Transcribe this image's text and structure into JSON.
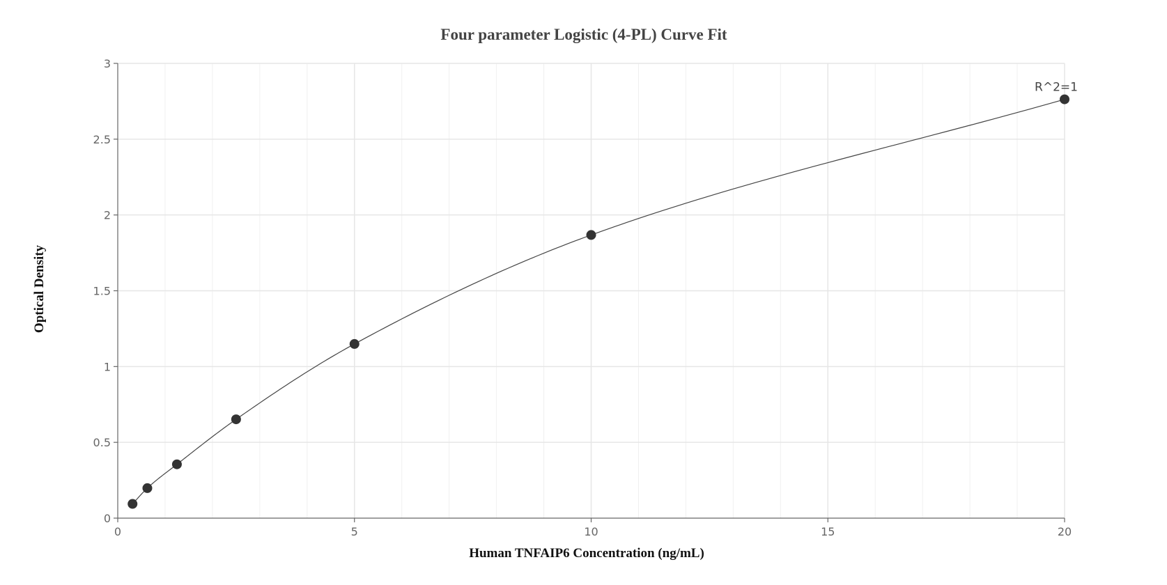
{
  "chart_data": {
    "type": "scatter",
    "title": "Four parameter Logistic (4-PL) Curve Fit",
    "xlabel": "Human TNFAIP6 Concentration (ng/mL)",
    "ylabel": "Optical Density",
    "xlim": [
      0,
      20
    ],
    "ylim": [
      0,
      3
    ],
    "x_ticks": [
      "0",
      "5",
      "10",
      "15",
      "20"
    ],
    "y_ticks": [
      "0",
      "0.5",
      "1",
      "1.5",
      "2",
      "2.5",
      "3"
    ],
    "grid": true,
    "series": [
      {
        "points": [
          {
            "x": 0.3125,
            "y": 0.094
          },
          {
            "x": 0.625,
            "y": 0.198
          },
          {
            "x": 1.25,
            "y": 0.355
          },
          {
            "x": 2.5,
            "y": 0.652
          },
          {
            "x": 5,
            "y": 1.149
          },
          {
            "x": 10,
            "y": 1.868
          },
          {
            "x": 20,
            "y": 2.763
          }
        ]
      }
    ],
    "fit_curve": "4-PL",
    "annotation": "R^2=1",
    "colors": {
      "point": "#333333",
      "curve": "#444444",
      "grid": "#e6e6e6",
      "axis": "#666666"
    }
  }
}
